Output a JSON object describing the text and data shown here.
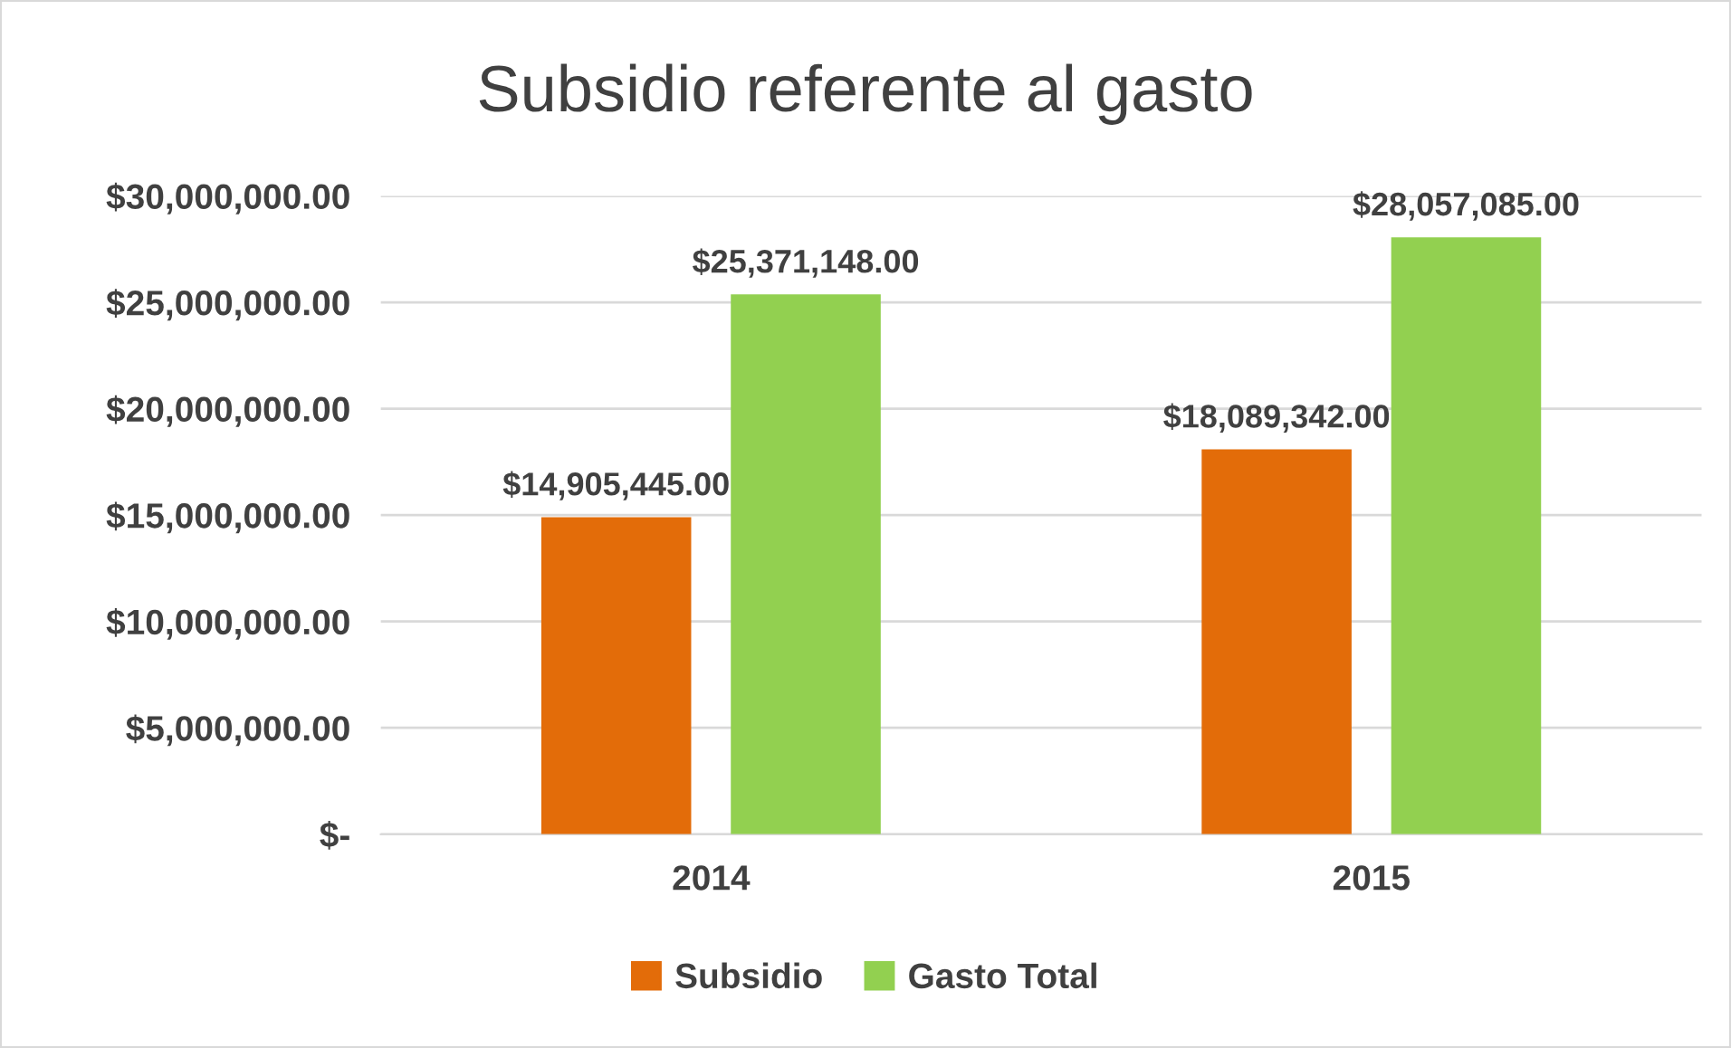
{
  "chart_data": {
    "type": "bar",
    "title": "Subsidio referente al gasto",
    "categories": [
      "2014",
      "2015"
    ],
    "series": [
      {
        "name": "Subsidio",
        "color": "#e36c09",
        "values": [
          14905445,
          18089342
        ],
        "value_labels": [
          "$14,905,445.00",
          "$18,089,342.00"
        ]
      },
      {
        "name": "Gasto Total",
        "color": "#92d050",
        "values": [
          25371148,
          28057085
        ],
        "value_labels": [
          "$25,371,148.00",
          "$28,057,085.00"
        ]
      }
    ],
    "ylim": [
      0,
      30000000
    ],
    "yticks": [
      {
        "value": 0,
        "label": "$-"
      },
      {
        "value": 5000000,
        "label": "$5,000,000.00"
      },
      {
        "value": 10000000,
        "label": "$10,000,000.00"
      },
      {
        "value": 15000000,
        "label": "$15,000,000.00"
      },
      {
        "value": 20000000,
        "label": "$20,000,000.00"
      },
      {
        "value": 25000000,
        "label": "$25,000,000.00"
      },
      {
        "value": 30000000,
        "label": "$30,000,000.00"
      }
    ],
    "grid": "y",
    "legend": "bottom"
  }
}
